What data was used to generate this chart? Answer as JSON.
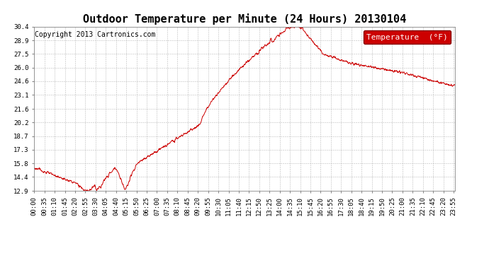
{
  "title": "Outdoor Temperature per Minute (24 Hours) 20130104",
  "copyright_text": "Copyright 2013 Cartronics.com",
  "legend_label": "Temperature  (°F)",
  "line_color": "#cc0000",
  "background_color": "#ffffff",
  "grid_color": "#aaaaaa",
  "ylim": [
    12.9,
    30.4
  ],
  "yticks": [
    12.9,
    14.4,
    15.8,
    17.3,
    18.7,
    20.2,
    21.6,
    23.1,
    24.6,
    26.0,
    27.5,
    28.9,
    30.4
  ],
  "xtick_labels": [
    "00:00",
    "00:35",
    "01:10",
    "01:45",
    "02:20",
    "02:55",
    "03:30",
    "04:05",
    "04:40",
    "05:15",
    "05:50",
    "06:25",
    "07:00",
    "07:35",
    "08:10",
    "08:45",
    "09:20",
    "09:55",
    "10:30",
    "11:05",
    "11:40",
    "12:15",
    "12:50",
    "13:25",
    "14:00",
    "14:35",
    "15:10",
    "15:45",
    "16:20",
    "16:55",
    "17:30",
    "18:05",
    "18:40",
    "19:15",
    "19:50",
    "20:25",
    "21:00",
    "21:35",
    "22:10",
    "22:45",
    "23:20",
    "23:55"
  ],
  "legend_bg_color": "#cc0000",
  "legend_text_color": "#ffffff",
  "title_fontsize": 11,
  "copyright_fontsize": 7,
  "legend_fontsize": 8,
  "tick_fontsize": 6.5
}
